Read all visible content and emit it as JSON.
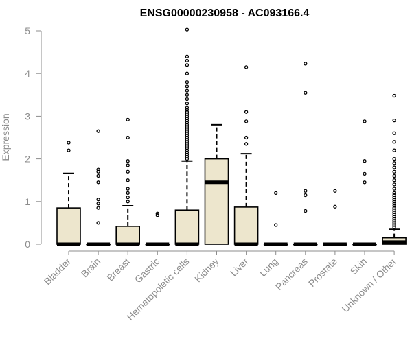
{
  "chart_data": {
    "type": "box",
    "title": "ENSG00000230958 - AC093166.4",
    "xlabel": "",
    "ylabel": "Expression",
    "ylim": [
      0,
      5
    ],
    "yticks": [
      "0",
      "1",
      "2",
      "3",
      "4",
      "5"
    ],
    "grid": false,
    "legend": "none",
    "box_color": "#ede6cd",
    "categories": [
      "Bladder",
      "Brain",
      "Breast",
      "Gastric",
      "Hematopoietic cells",
      "Kidney",
      "Liver",
      "Lung",
      "Pancreas",
      "Prostate",
      "Skin",
      "Unknown / Other"
    ],
    "boxes": [
      {
        "category": "Bladder",
        "q1": 0,
        "median": 0,
        "q3": 0.85,
        "whisker_low": 0,
        "whisker_high": 1.66,
        "outliers": [
          2.2,
          2.38
        ]
      },
      {
        "category": "Brain",
        "q1": 0,
        "median": 0,
        "q3": 0,
        "whisker_low": 0,
        "whisker_high": 0,
        "outliers": [
          0.5,
          0.85,
          0.95,
          1.05,
          1.45,
          1.6,
          1.7,
          1.75,
          2.65
        ]
      },
      {
        "category": "Breast",
        "q1": 0,
        "median": 0,
        "q3": 0.42,
        "whisker_low": 0,
        "whisker_high": 0.9,
        "outliers": [
          1.0,
          1.1,
          1.2,
          1.3,
          1.5,
          1.7,
          1.85,
          1.95,
          2.5,
          2.92
        ]
      },
      {
        "category": "Gastric",
        "q1": 0,
        "median": 0,
        "q3": 0,
        "whisker_low": 0,
        "whisker_high": 0,
        "outliers": [
          0.68,
          0.72
        ]
      },
      {
        "category": "Hematopoietic cells",
        "q1": 0,
        "median": 0,
        "q3": 0.8,
        "whisker_low": 0,
        "whisker_high": 1.95,
        "outliers": [
          2.0,
          2.05,
          2.1,
          2.15,
          2.2,
          2.25,
          2.3,
          2.35,
          2.4,
          2.45,
          2.5,
          2.55,
          2.6,
          2.65,
          2.7,
          2.75,
          2.8,
          2.85,
          2.9,
          2.95,
          3.0,
          3.05,
          3.1,
          3.15,
          3.2,
          3.3,
          3.4,
          3.5,
          3.6,
          3.7,
          3.8,
          4.0,
          4.2,
          4.3,
          4.4,
          5.03
        ]
      },
      {
        "category": "Kidney",
        "q1": 0,
        "median": 1.45,
        "q3": 2.0,
        "whisker_low": 0,
        "whisker_high": 2.8,
        "outliers": []
      },
      {
        "category": "Liver",
        "q1": 0,
        "median": 0,
        "q3": 0.87,
        "whisker_low": 0,
        "whisker_high": 2.12,
        "outliers": [
          2.35,
          2.5,
          2.88,
          3.1,
          4.15
        ]
      },
      {
        "category": "Lung",
        "q1": 0,
        "median": 0,
        "q3": 0,
        "whisker_low": 0,
        "whisker_high": 0,
        "outliers": [
          0.45,
          1.2
        ]
      },
      {
        "category": "Pancreas",
        "q1": 0,
        "median": 0,
        "q3": 0,
        "whisker_low": 0,
        "whisker_high": 0,
        "outliers": [
          0.78,
          1.15,
          1.25,
          3.55,
          4.23
        ]
      },
      {
        "category": "Prostate",
        "q1": 0,
        "median": 0,
        "q3": 0,
        "whisker_low": 0,
        "whisker_high": 0,
        "outliers": [
          0.88,
          1.25
        ]
      },
      {
        "category": "Skin",
        "q1": 0,
        "median": 0,
        "q3": 0,
        "whisker_low": 0,
        "whisker_high": 0,
        "outliers": [
          1.45,
          1.65,
          1.95,
          2.88
        ]
      },
      {
        "category": "Unknown / Other",
        "q1": 0,
        "median": 0.05,
        "q3": 0.15,
        "whisker_low": 0,
        "whisker_high": 0.35,
        "outliers": [
          0.4,
          0.45,
          0.5,
          0.55,
          0.6,
          0.65,
          0.7,
          0.75,
          0.8,
          0.85,
          0.9,
          0.95,
          1.0,
          1.05,
          1.1,
          1.15,
          1.2,
          1.3,
          1.4,
          1.5,
          1.6,
          1.7,
          1.8,
          1.9,
          2.0,
          2.2,
          2.4,
          2.6,
          2.9,
          3.48
        ]
      }
    ]
  }
}
